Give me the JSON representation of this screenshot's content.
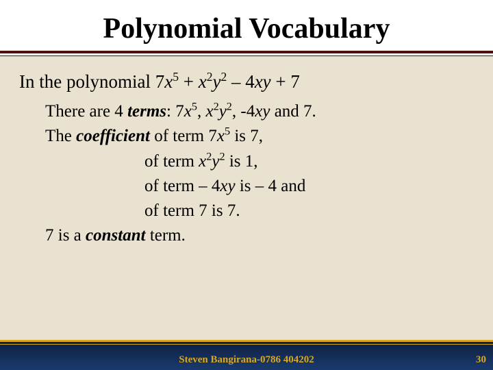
{
  "title": "Polynomial Vocabulary",
  "intro_prefix": "In the polynomial  ",
  "body": {
    "terms_prefix": "There are 4 ",
    "terms_word": "terms",
    "coeff_prefix": "The ",
    "coeff_word": "coefficient",
    "line6_prefix": "7 is a ",
    "line6_word": "constant",
    "line6_suffix": " term."
  },
  "footer": {
    "author": "Steven Bangirana-0786 404202",
    "page": "30"
  },
  "colors": {
    "content_bg": "#e9e2d0",
    "rule": "#4a0f0f",
    "footer_grad_top": "#0d1e3d",
    "footer_grad_bottom": "#1a3a6e",
    "footer_accent": "#d9a820",
    "text": "#000000"
  }
}
